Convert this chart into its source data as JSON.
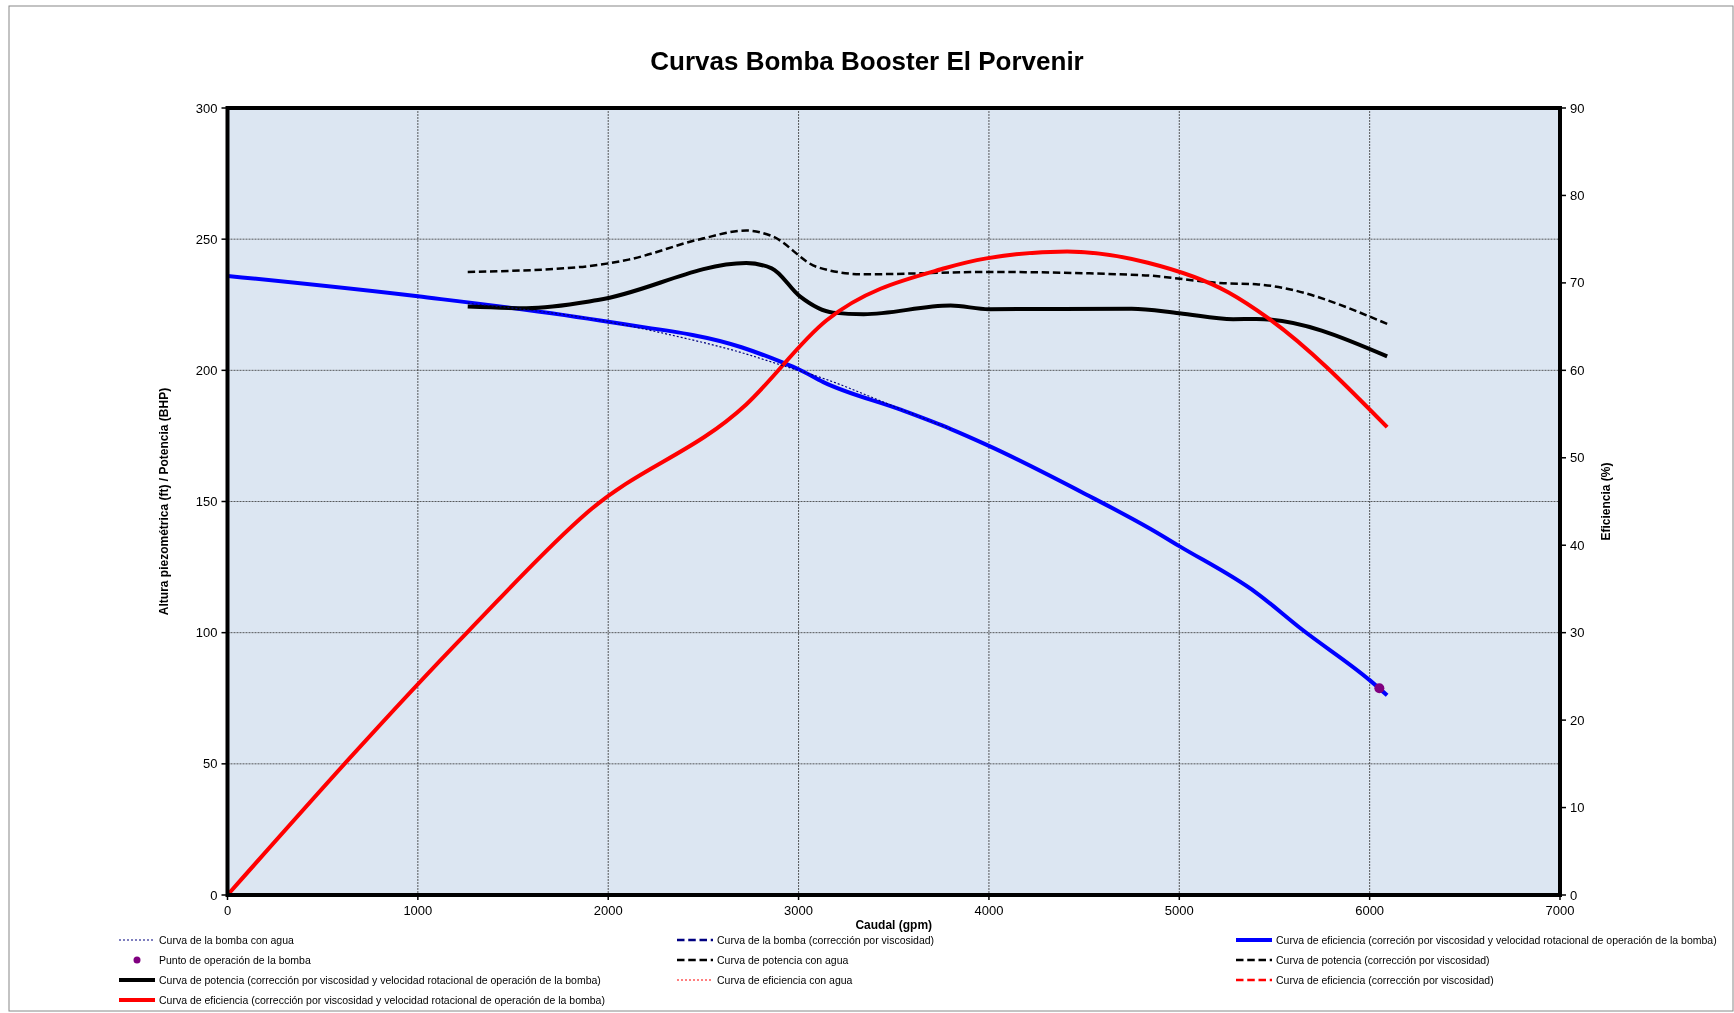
{
  "chart_data": {
    "type": "line",
    "title": "Curvas Bomba Booster El Porvenir",
    "xlabel": "Caudal (gpm)",
    "ylabel": "Altura piezométrica (ft) / Potencia (BHP)",
    "y2label": "Eficiencia (%)",
    "xlim": [
      0,
      7000
    ],
    "xticks": [
      0,
      1000,
      2000,
      3000,
      4000,
      5000,
      6000,
      7000
    ],
    "ylim": [
      0,
      300
    ],
    "yticks": [
      0,
      50,
      100,
      150,
      200,
      250,
      300
    ],
    "y2lim": [
      0,
      90
    ],
    "y2ticks": [
      0,
      10,
      20,
      30,
      40,
      50,
      60,
      70,
      80,
      90
    ],
    "grid": true,
    "legend": "bottom",
    "series": [
      {
        "name": "Curva de la bomba con agua",
        "color": "#000080",
        "line_style": "dotted",
        "x": [
          1262,
          2000,
          2322,
          2698,
          2913,
          3127,
          3530,
          3800
        ],
        "values": [
          225.6,
          218.5,
          213.6,
          206.8,
          201.9,
          197,
          185.4,
          177.6
        ]
      },
      {
        "name": "Curva de la bomba (corrección por viscosidad)",
        "color": "#000080",
        "line_style": "dashed"
      },
      {
        "name": "Curva de eficiencia (correción por viscosidad y velocidad rotacional de operación de la bomba)",
        "color": "#0000ff",
        "line_style": "solid",
        "x": [
          0,
          1000,
          2000,
          2700,
          2915,
          3000,
          3130,
          3540,
          3800,
          4000,
          4508,
          4847,
          5000,
          5403,
          5645,
          6000,
          6092
        ],
        "values": [
          236,
          228.2,
          218.5,
          208.8,
          203,
          200.4,
          195.5,
          184.9,
          177.6,
          171.2,
          152.8,
          139.6,
          133,
          115.3,
          101.2,
          81.9,
          76.1
        ]
      },
      {
        "name": "Punto de operación de la bomba",
        "type": "scatter",
        "marker": "circle",
        "color": "#800080",
        "x": [
          6051
        ],
        "values": [
          78.8
        ]
      },
      {
        "name": "Curva de potencia con agua",
        "color": "#000000",
        "line_style": "dashed",
        "x": [
          1262,
          1839,
          2107,
          2483,
          2725,
          2859,
          3100,
          3342,
          3987,
          4798,
          5234,
          5404,
          6092
        ],
        "values": [
          237.5,
          239.3,
          242.2,
          250,
          253.3,
          251.2,
          239.3,
          236.6,
          237.5,
          236.3,
          233.2,
          232.8,
          217.7
        ]
      },
      {
        "name": "Curva de potencia (corrección por viscosidad)",
        "color": "#000000",
        "line_style": "dashed"
      },
      {
        "name": "Curva de potencia (corrección por viscosidad y velocidad rotacional de operación de la bomba)",
        "color": "#000000",
        "line_style": "solid",
        "x": [
          1262,
          1570,
          1946,
          2725,
          2859,
          3007,
          3181,
          3342,
          3799,
          4000,
          4750,
          5000,
          5283,
          5404,
          6092
        ],
        "values": [
          224.3,
          223.7,
          226.8,
          240.9,
          238.9,
          228.2,
          222,
          221.4,
          224.7,
          223.3,
          223.5,
          221.8,
          219.5,
          219.6,
          205.3
        ]
      },
      {
        "name": "Curva de eficiencia con agua",
        "color": "#ff0000",
        "line_style": "dotted"
      },
      {
        "name": "Curva de eficiencia (corrección por viscosidad)",
        "color": "#ff0000",
        "line_style": "dashed"
      },
      {
        "name": "Curva de eficiencia (corrección por viscosidad y velocidad rotacional de operación de la bomba)",
        "color": "#ff0000",
        "line_style": "solid",
        "axis": "y2",
        "x": [
          0,
          1262,
          1893,
          2725,
          3146,
          3772,
          3987,
          4411,
          4835,
          5259,
          5465,
          6092
        ],
        "values": [
          0,
          30.1,
          43.8,
          56.1,
          65.7,
          71.7,
          72.8,
          73.6,
          72.3,
          68.9,
          66,
          53.5
        ]
      }
    ]
  }
}
